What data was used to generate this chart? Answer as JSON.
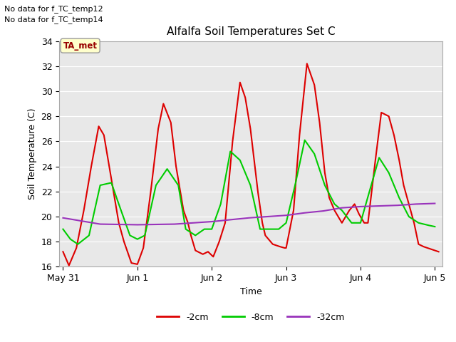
{
  "title": "Alfalfa Soil Temperatures Set C",
  "xlabel": "Time",
  "ylabel": "Soil Temperature (C)",
  "ylim": [
    16,
    34
  ],
  "yticks": [
    16,
    18,
    20,
    22,
    24,
    26,
    28,
    30,
    32,
    34
  ],
  "xtick_positions": [
    0,
    1,
    2,
    3,
    4,
    5
  ],
  "xtick_labels": [
    "May 31",
    "Jun 1",
    "Jun 2",
    "Jun 3",
    "Jun 4",
    "Jun 5"
  ],
  "xlim": [
    -0.05,
    5.1
  ],
  "text_annotations": [
    "No data for f_TC_temp12",
    "No data for f_TC_temp14"
  ],
  "legend_label_box": "TA_met",
  "legend_box_facecolor": "#ffffcc",
  "legend_box_text_color": "#990000",
  "background_color": "#e8e8e8",
  "line_2cm_color": "#dd0000",
  "line_8cm_color": "#00cc00",
  "line_32cm_color": "#9933bb",
  "line_width": 1.5,
  "series_2cm_x": [
    0.0,
    0.08,
    0.18,
    0.28,
    0.38,
    0.48,
    0.55,
    0.65,
    0.75,
    0.82,
    0.92,
    1.0,
    1.08,
    1.18,
    1.28,
    1.35,
    1.45,
    1.52,
    1.62,
    1.68,
    1.72,
    1.78,
    1.88,
    1.95,
    2.02,
    2.1,
    2.18,
    2.28,
    2.38,
    2.45,
    2.52,
    2.62,
    2.68,
    2.72,
    2.82,
    2.92,
    2.98,
    3.0,
    3.1,
    3.18,
    3.28,
    3.38,
    3.45,
    3.52,
    3.58,
    3.65,
    3.75,
    3.85,
    3.92,
    3.98,
    4.05,
    4.1,
    4.2,
    4.28,
    4.38,
    4.45,
    4.52,
    4.58,
    4.65,
    4.72,
    4.78,
    4.85,
    4.9,
    4.95,
    5.0,
    5.05
  ],
  "series_2cm_y": [
    17.2,
    16.1,
    17.5,
    20.5,
    24.0,
    27.2,
    26.5,
    23.0,
    19.5,
    18.0,
    16.3,
    16.2,
    17.5,
    22.0,
    27.0,
    29.0,
    27.5,
    24.0,
    20.5,
    19.5,
    18.5,
    17.3,
    17.0,
    17.2,
    16.8,
    18.0,
    19.5,
    26.0,
    30.7,
    29.5,
    27.0,
    22.0,
    19.5,
    18.5,
    17.8,
    17.6,
    17.5,
    17.5,
    20.5,
    26.5,
    32.2,
    30.5,
    27.5,
    23.5,
    21.5,
    20.5,
    19.5,
    20.5,
    21.0,
    20.2,
    19.5,
    19.5,
    24.5,
    28.3,
    28.0,
    26.5,
    24.5,
    22.5,
    21.0,
    19.5,
    17.8,
    17.6,
    17.5,
    17.4,
    17.3,
    17.2
  ],
  "series_8cm_x": [
    0.0,
    0.1,
    0.2,
    0.35,
    0.5,
    0.65,
    0.75,
    0.9,
    1.0,
    1.1,
    1.25,
    1.4,
    1.55,
    1.65,
    1.78,
    1.9,
    2.0,
    2.12,
    2.25,
    2.38,
    2.52,
    2.65,
    2.78,
    2.9,
    3.0,
    3.12,
    3.25,
    3.38,
    3.52,
    3.65,
    3.75,
    3.88,
    4.0,
    4.12,
    4.25,
    4.38,
    4.52,
    4.65,
    4.78,
    4.92,
    5.0
  ],
  "series_8cm_y": [
    19.0,
    18.2,
    17.8,
    18.5,
    22.5,
    22.7,
    21.0,
    18.5,
    18.2,
    18.5,
    22.5,
    23.8,
    22.5,
    19.0,
    18.5,
    19.0,
    19.0,
    21.0,
    25.2,
    24.5,
    22.5,
    19.0,
    19.0,
    19.0,
    19.5,
    22.5,
    26.1,
    25.0,
    22.5,
    21.0,
    20.5,
    19.5,
    19.5,
    22.0,
    24.7,
    23.5,
    21.5,
    20.0,
    19.5,
    19.3,
    19.2
  ],
  "series_32cm_x": [
    0.0,
    0.5,
    1.0,
    1.5,
    2.0,
    2.5,
    3.0,
    3.25,
    3.5,
    3.75,
    4.0,
    4.25,
    4.5,
    4.75,
    5.0
  ],
  "series_32cm_y": [
    19.9,
    19.4,
    19.35,
    19.4,
    19.6,
    19.9,
    20.1,
    20.3,
    20.45,
    20.7,
    20.8,
    20.85,
    20.9,
    21.0,
    21.05
  ]
}
